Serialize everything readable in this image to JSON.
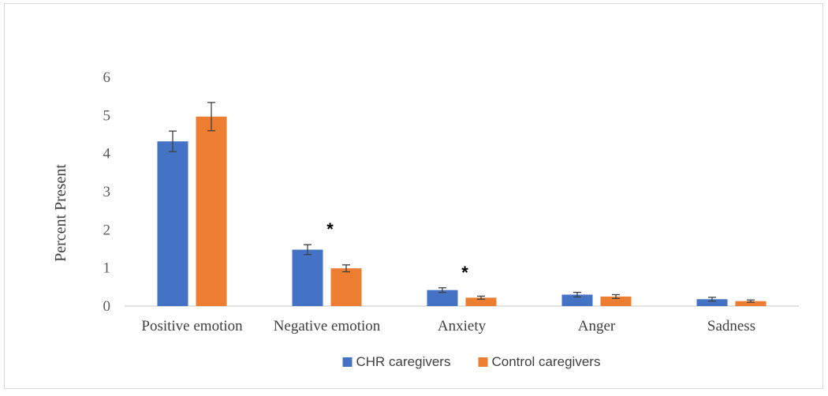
{
  "chart_data": {
    "type": "bar",
    "title": "",
    "xlabel": "",
    "ylabel": "Percent Present",
    "ylim": [
      0,
      6
    ],
    "yticks": [
      0,
      1,
      2,
      3,
      4,
      5,
      6
    ],
    "grid": false,
    "categories": [
      "Positive emotion",
      "Negative emotion",
      "Anxiety",
      "Anger",
      "Sadness"
    ],
    "series": [
      {
        "name": "CHR caregivers",
        "color": "#4472c4",
        "values": [
          4.32,
          1.48,
          0.42,
          0.3,
          0.18
        ],
        "errors": [
          0.27,
          0.13,
          0.06,
          0.06,
          0.05
        ]
      },
      {
        "name": "Control caregivers",
        "color": "#ed7d31",
        "values": [
          4.97,
          0.99,
          0.22,
          0.25,
          0.13
        ],
        "errors": [
          0.37,
          0.09,
          0.04,
          0.05,
          0.03
        ]
      }
    ],
    "annotations": [
      {
        "category_index": 1,
        "text": "*"
      },
      {
        "category_index": 2,
        "text": "*"
      }
    ],
    "legend_position": "bottom"
  }
}
